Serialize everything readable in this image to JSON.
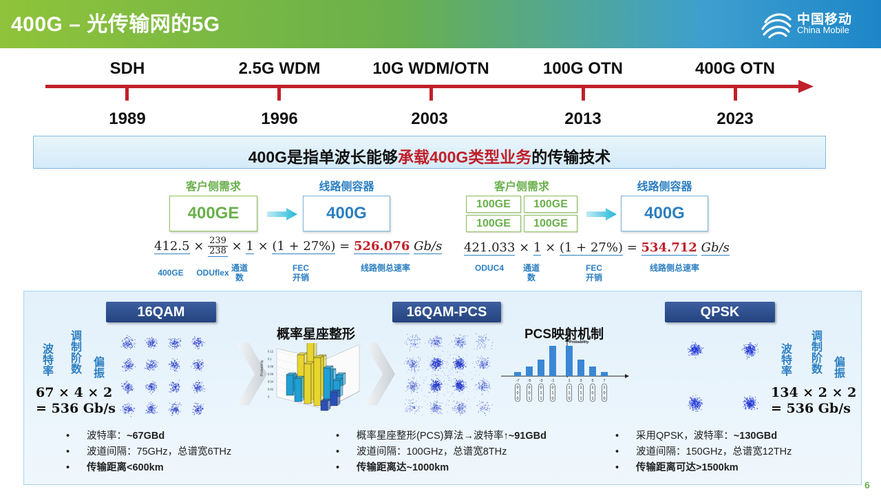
{
  "header": {
    "title": "400G – 光传输网的5G",
    "logo_cn": "中国移动",
    "logo_en": "China Mobile"
  },
  "timeline": [
    {
      "era": "SDH",
      "year": "1989"
    },
    {
      "era": "2.5G WDM",
      "year": "1996"
    },
    {
      "era": "10G WDM/OTN",
      "year": "2003"
    },
    {
      "era": "100G OTN",
      "year": "2013"
    },
    {
      "era": "400G OTN",
      "year": "2023"
    }
  ],
  "banner": {
    "pre": "400G是指单波长能够",
    "highlight": "承载400G类型业务",
    "post": "的传输技术"
  },
  "left_mapping": {
    "client_label": "客户侧需求",
    "client_box": "400GE",
    "line_label": "线路侧容器",
    "line_box": "400G",
    "formula": {
      "a": "412.5",
      "frac_num": "239",
      "frac_den": "238",
      "b": "1",
      "c": "(1 + 27%)",
      "result": "526.076",
      "unit": "Gb/s"
    },
    "notes": {
      "n1": "400GE",
      "n2": "ODUflex",
      "n3": "通道数",
      "n4": "FEC开销",
      "n5": "线路侧总速率"
    }
  },
  "right_mapping": {
    "client_label": "客户侧需求",
    "client_boxes": [
      "100GE",
      "100GE",
      "100GE",
      "100GE"
    ],
    "line_label": "线路侧容器",
    "line_box": "400G",
    "formula": {
      "a": "421.033",
      "b": "1",
      "c": "(1 + 27%)",
      "result": "534.712",
      "unit": "Gb/s"
    },
    "notes": {
      "n1": "ODUC4",
      "n2": "通道数",
      "n3": "FEC开销",
      "n4": "线路侧总速率"
    }
  },
  "panel": {
    "tag1": "16QAM",
    "tag2": "16QAM-PCS",
    "tag3": "QPSK",
    "heading_pcs": "概率星座整形",
    "heading_map": "PCS映射机制",
    "left_vlabels": {
      "baud": "波特率",
      "order": "调制阶数",
      "pol": "偏振"
    },
    "left_eq": {
      "line1": "67 × 4 × 2",
      "line2": "= 536 Gb/s"
    },
    "right_vlabels": {
      "baud": "波特率",
      "order": "调制阶数",
      "pol": "偏振"
    },
    "right_eq": {
      "line1": "134 × 2 × 2",
      "line2": "= 536 Gb/s"
    },
    "chart_prob_label": "Probability",
    "map_prob_label": "Probability",
    "map_ticks": [
      "-7",
      "-5",
      "-3",
      "-1",
      "1",
      "3",
      "5",
      "7"
    ],
    "map_bits": [
      [
        "0",
        "0",
        "0"
      ],
      [
        "0",
        "0",
        "1"
      ],
      [
        "0",
        "1",
        "1"
      ],
      [
        "0",
        "1",
        "0"
      ],
      [
        "1",
        "1",
        "0"
      ],
      [
        "1",
        "1",
        "1"
      ],
      [
        "1",
        "0",
        "1"
      ],
      [
        "1",
        "0",
        "0"
      ]
    ],
    "bars_y_ticks": [
      "0.12",
      "0.1",
      "0.08",
      "0.06",
      "0.04",
      "0.02",
      "0"
    ],
    "bullets1": [
      {
        "pre": "波特率：",
        "bold": "~67GBd",
        "post": ""
      },
      {
        "pre": "波道间隔：75GHz，总谱宽6THz",
        "bold": "",
        "post": ""
      },
      {
        "pre": "",
        "bold": "传输距离<600km",
        "post": ""
      }
    ],
    "bullets2": [
      {
        "pre": "概率星座整形(PCS)算法→波特率↑",
        "bold": "~91GBd",
        "post": ""
      },
      {
        "pre": "波道间隔：100GHz，总谱宽8THz",
        "bold": "",
        "post": ""
      },
      {
        "pre": "",
        "bold": "传输距离达~1000km",
        "post": ""
      }
    ],
    "bullets3": [
      {
        "pre": "采用QPSK，波特率：",
        "bold": "~130GBd",
        "post": ""
      },
      {
        "pre": "波道间隔：150GHz，总谱宽12THz",
        "bold": "",
        "post": ""
      },
      {
        "pre": "",
        "bold": "传输距离可达>1500km",
        "post": ""
      }
    ]
  },
  "page_number": "6",
  "colors": {
    "accent_red": "#c0202a",
    "green": "#6ab04c",
    "blue": "#2c7fc1",
    "navy": "#24437e"
  }
}
